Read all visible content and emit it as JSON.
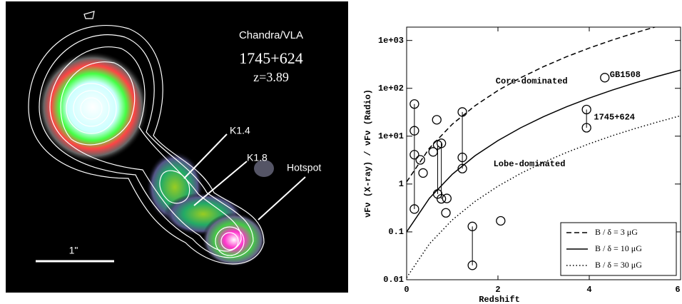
{
  "image": {
    "labels": [
      "Chandra/VLA",
      "1745+624",
      "z=3.89",
      "K1.4",
      "K1.8",
      "Hotspot",
      "1\""
    ]
  },
  "chart_data": {
    "type": "scatter",
    "x_label": "Redshift",
    "y_label": "νFν (X-ray) / νFν (Radio)",
    "xlim": [
      0,
      6
    ],
    "xticks": [
      0,
      2,
      4,
      6
    ],
    "ylim": [
      0.01,
      1900
    ],
    "ylog": true,
    "yticks": [
      0.01,
      0.1,
      1,
      {
        "value": 10,
        "label": "1e+01"
      },
      {
        "value": 100,
        "label": "1e+02"
      },
      {
        "value": 1000,
        "label": "1e+03"
      }
    ],
    "x": [
      0.17,
      0.17,
      0.17,
      0.17,
      0.3,
      0.36,
      0.58,
      0.66,
      0.68,
      0.68,
      0.76,
      0.76,
      0.88,
      0.86,
      1.22,
      1.22,
      1.22,
      1.44,
      1.44,
      2.06,
      3.94,
      3.94,
      4.34
    ],
    "values": [
      47,
      13,
      4.1,
      0.3,
      3.2,
      1.7,
      4.7,
      22,
      6.6,
      0.62,
      7.1,
      0.49,
      0.5,
      0.25,
      32,
      3.6,
      2.1,
      0.13,
      0.02,
      0.17,
      36,
      15,
      167
    ],
    "color": "#000000",
    "lines": [
      {
        "name": "B / δ = 3 μG",
        "style": "dashed",
        "x": [
          0,
          0.5,
          1,
          1.5,
          2,
          2.5,
          3,
          3.5,
          4,
          4.5,
          5,
          5.5,
          6
        ],
        "values": [
          1.11,
          5.63,
          17.8,
          43.4,
          90,
          167,
          284,
          456,
          694,
          1017,
          1440,
          1983,
          2668
        ]
      },
      {
        "name": "B / δ = 10 μG",
        "style": "solid",
        "x": [
          0,
          0.5,
          1,
          1.5,
          2,
          2.5,
          3,
          3.5,
          4,
          4.5,
          5,
          5.5,
          6
        ],
        "values": [
          0.1,
          0.506,
          1.6,
          3.91,
          8.1,
          15.0,
          25.6,
          41.0,
          62.5,
          91.5,
          129.6,
          178.5,
          240.1
        ]
      },
      {
        "name": "B / δ = 30 μG",
        "style": "dotted",
        "x": [
          0,
          0.5,
          1,
          1.5,
          2,
          2.5,
          3,
          3.5,
          4,
          4.5,
          5,
          5.5,
          6
        ],
        "values": [
          0.0111,
          0.0563,
          0.178,
          0.434,
          0.9,
          1.67,
          2.84,
          4.56,
          6.94,
          10.2,
          14.4,
          19.8,
          26.7
        ]
      }
    ],
    "annotations": [
      {
        "text": "Core-dominated",
        "x": 1.95,
        "y": 140
      },
      {
        "text": "Lobe-dominated",
        "x": 1.9,
        "y": 2.6
      },
      {
        "text": "GB1508",
        "x": 4.45,
        "y": 190
      },
      {
        "text": "1745+624",
        "x": 4.1,
        "y": 25
      }
    ],
    "legend": "lower right"
  }
}
